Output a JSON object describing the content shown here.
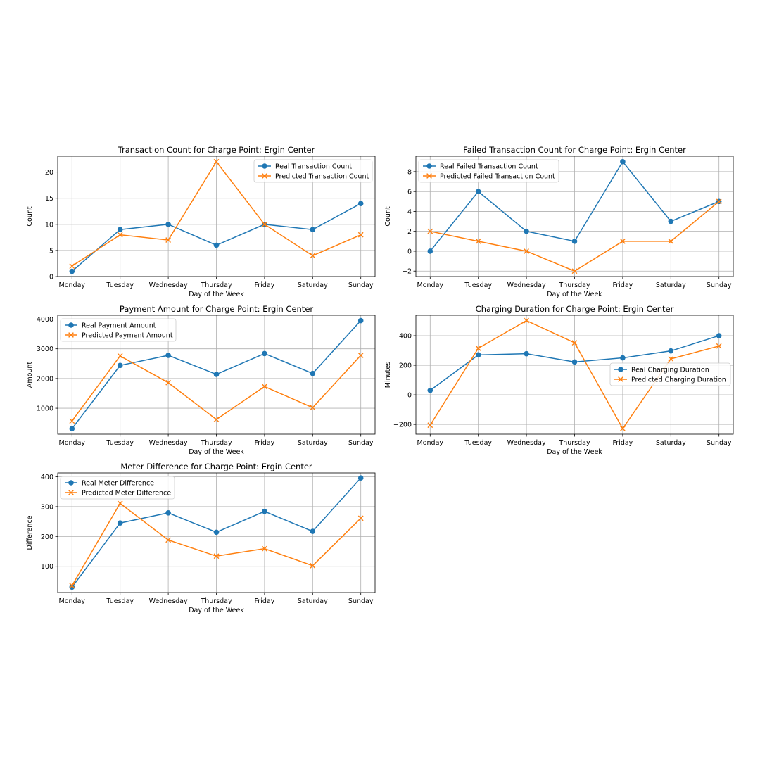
{
  "chart_data": [
    {
      "type": "line",
      "title": "Transaction Count for Charge Point: Ergin Center",
      "xlabel": "Day of the Week",
      "ylabel": "Count",
      "categories": [
        "Monday",
        "Tuesday",
        "Wednesday",
        "Thursday",
        "Friday",
        "Saturday",
        "Sunday"
      ],
      "ylim": [
        0,
        23.05
      ],
      "yticks": [
        0,
        5,
        10,
        15,
        20
      ],
      "ytick_labels": [
        "0",
        "5",
        "10",
        "15",
        "20"
      ],
      "grid": true,
      "legend": "upper right",
      "series": [
        {
          "name": "Real Transaction Count",
          "marker": "o",
          "color": "#1f77b4",
          "values": [
            1,
            9,
            10,
            6,
            10,
            9,
            14
          ]
        },
        {
          "name": "Predicted Transaction Count",
          "marker": "x",
          "color": "#ff7f0e",
          "values": [
            2,
            8,
            7,
            22,
            10,
            4,
            8
          ]
        }
      ]
    },
    {
      "type": "line",
      "title": "Failed Transaction Count for Charge Point: Ergin Center",
      "xlabel": "Day of the Week",
      "ylabel": "Count",
      "categories": [
        "Monday",
        "Tuesday",
        "Wednesday",
        "Thursday",
        "Friday",
        "Saturday",
        "Sunday"
      ],
      "ylim": [
        -2.55,
        9.55
      ],
      "yticks": [
        -2,
        0,
        2,
        4,
        6,
        8
      ],
      "ytick_labels": [
        "−2",
        "0",
        "2",
        "4",
        "6",
        "8"
      ],
      "grid": true,
      "legend": "upper left",
      "series": [
        {
          "name": "Real Failed Transaction Count",
          "marker": "o",
          "color": "#1f77b4",
          "values": [
            0,
            6,
            2,
            1,
            9,
            3,
            5
          ]
        },
        {
          "name": "Predicted Failed Transaction Count",
          "marker": "x",
          "color": "#ff7f0e",
          "values": [
            2,
            1,
            0,
            -2,
            1,
            1,
            5
          ]
        }
      ]
    },
    {
      "type": "line",
      "title": "Payment Amount for Charge Point: Ergin Center",
      "xlabel": "Day of the Week",
      "ylabel": "Amount",
      "categories": [
        "Monday",
        "Tuesday",
        "Wednesday",
        "Thursday",
        "Friday",
        "Saturday",
        "Sunday"
      ],
      "ylim": [
        125,
        4130
      ],
      "yticks": [
        1000,
        2000,
        3000,
        4000
      ],
      "ytick_labels": [
        "1000",
        "2000",
        "3000",
        "4000"
      ],
      "grid": true,
      "legend": "upper left",
      "series": [
        {
          "name": "Real Payment Amount",
          "marker": "o",
          "color": "#1f77b4",
          "values": [
            310,
            2440,
            2780,
            2140,
            2840,
            2170,
            3950
          ]
        },
        {
          "name": "Predicted Payment Amount",
          "marker": "x",
          "color": "#ff7f0e",
          "values": [
            570,
            2760,
            1860,
            620,
            1730,
            1020,
            2780
          ]
        }
      ]
    },
    {
      "type": "line",
      "title": "Charging Duration for Charge Point: Ergin Center",
      "xlabel": "Day of the Week",
      "ylabel": "Minutes",
      "categories": [
        "Monday",
        "Tuesday",
        "Wednesday",
        "Thursday",
        "Friday",
        "Saturday",
        "Sunday"
      ],
      "ylim": [
        -266,
        538
      ],
      "yticks": [
        -200,
        0,
        200,
        400
      ],
      "ytick_labels": [
        "−200",
        "0",
        "200",
        "400"
      ],
      "grid": true,
      "legend": "center right",
      "series": [
        {
          "name": "Real Charging Duration",
          "marker": "o",
          "color": "#1f77b4",
          "values": [
            30,
            270,
            278,
            222,
            250,
            297,
            400
          ]
        },
        {
          "name": "Predicted Charging Duration",
          "marker": "x",
          "color": "#ff7f0e",
          "values": [
            -205,
            315,
            502,
            352,
            -228,
            243,
            330
          ]
        }
      ]
    },
    {
      "type": "line",
      "title": "Meter Difference for Charge Point: Ergin Center",
      "xlabel": "Day of the Week",
      "ylabel": "Difference",
      "categories": [
        "Monday",
        "Tuesday",
        "Wednesday",
        "Thursday",
        "Friday",
        "Saturday",
        "Sunday"
      ],
      "ylim": [
        12,
        413
      ],
      "yticks": [
        100,
        200,
        300,
        400
      ],
      "ytick_labels": [
        "100",
        "200",
        "300",
        "400"
      ],
      "grid": true,
      "legend": "upper left",
      "series": [
        {
          "name": "Real Meter Difference",
          "marker": "o",
          "color": "#1f77b4",
          "values": [
            30,
            245,
            279,
            214,
            284,
            217,
            396
          ]
        },
        {
          "name": "Predicted Meter Difference",
          "marker": "x",
          "color": "#ff7f0e",
          "values": [
            35,
            311,
            188,
            134,
            159,
            102,
            261
          ]
        }
      ]
    }
  ]
}
